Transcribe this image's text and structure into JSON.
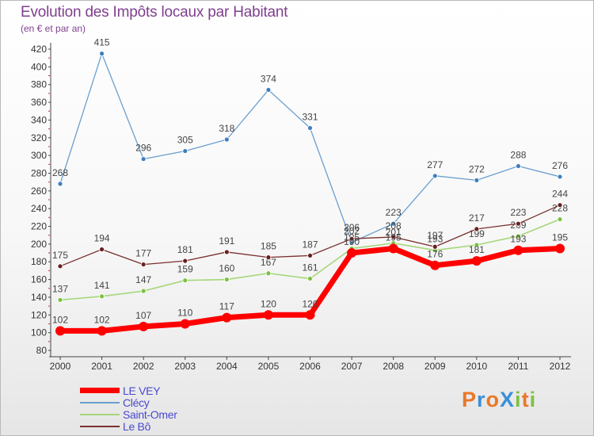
{
  "header": {
    "title": "Evolution des Impôts locaux par Habitant",
    "subtitle": "(en € et par an)"
  },
  "brand": {
    "text": "ProXiti",
    "colors": [
      "#e8782a",
      "#3a8fd8",
      "#e8782a",
      "#3a8fd8",
      "#7cc23f",
      "#e8782a",
      "#7cc23f"
    ]
  },
  "chart_data": {
    "type": "line",
    "x": [
      "2000",
      "2001",
      "2002",
      "2003",
      "2004",
      "2005",
      "2006",
      "2007",
      "2008",
      "2009",
      "2010",
      "2011",
      "2012"
    ],
    "ylim": [
      80,
      420
    ],
    "yticks": [
      80,
      100,
      120,
      140,
      160,
      180,
      200,
      220,
      240,
      260,
      280,
      300,
      320,
      340,
      360,
      380,
      400,
      420
    ],
    "grid": false,
    "legend_position": "bottom-left",
    "series": [
      {
        "name": "Clécy",
        "color": "#6b9fcf",
        "markerColor": "#3f7fbf",
        "width": 1.3,
        "labels": true,
        "values": [
          268,
          415,
          296,
          305,
          318,
          374,
          331,
          202,
          223,
          277,
          272,
          288,
          276
        ],
        "labelText": [
          "268",
          "415",
          "296",
          "305",
          "318",
          "374",
          "331",
          "202",
          "223",
          "277",
          "272",
          "288",
          "276"
        ]
      },
      {
        "name": "Saint-Omer",
        "color": "#a6d67a",
        "markerColor": "#7cc23f",
        "width": 1.6,
        "labels": true,
        "values": [
          137,
          141,
          147,
          159,
          160,
          167,
          161,
          195,
          201,
          193,
          199,
          209,
          228
        ],
        "labelText": [
          "137",
          "141",
          "147",
          "159",
          "160",
          "167",
          "161",
          "195",
          "201",
          "193",
          "199",
          "209",
          "228"
        ]
      },
      {
        "name": "Le Bô",
        "color": "#7a2f2f",
        "markerColor": "#6a1f1f",
        "width": 1.3,
        "labels": true,
        "values": [
          175,
          194,
          177,
          181,
          191,
          185,
          187,
          206,
          208,
          197,
          217,
          223,
          244
        ],
        "labelText": [
          "175",
          "194",
          "177",
          "181",
          "191",
          "185",
          "187",
          "206",
          "208",
          "197",
          "217",
          "223",
          "244"
        ]
      },
      {
        "name": "LE VEY",
        "color": "#ff0000",
        "markerColor": "#ff0000",
        "width": 7,
        "labels": true,
        "values": [
          102,
          102,
          107,
          110,
          117,
          120,
          120,
          190,
          195,
          176,
          181,
          193,
          195
        ],
        "labelText": [
          "102",
          "102",
          "107",
          "110",
          "117",
          "120",
          "120",
          "190",
          "195",
          "176",
          "181",
          "193",
          "195"
        ]
      }
    ]
  },
  "legend": {
    "items": [
      {
        "label": "LE VEY",
        "color": "#ff0000",
        "thickness": 7
      },
      {
        "label": "Clécy",
        "color": "#6b9fcf",
        "thickness": 2
      },
      {
        "label": "Saint-Omer",
        "color": "#a6d67a",
        "thickness": 2
      },
      {
        "label": "Le Bô",
        "color": "#7a2f2f",
        "thickness": 2
      }
    ]
  }
}
